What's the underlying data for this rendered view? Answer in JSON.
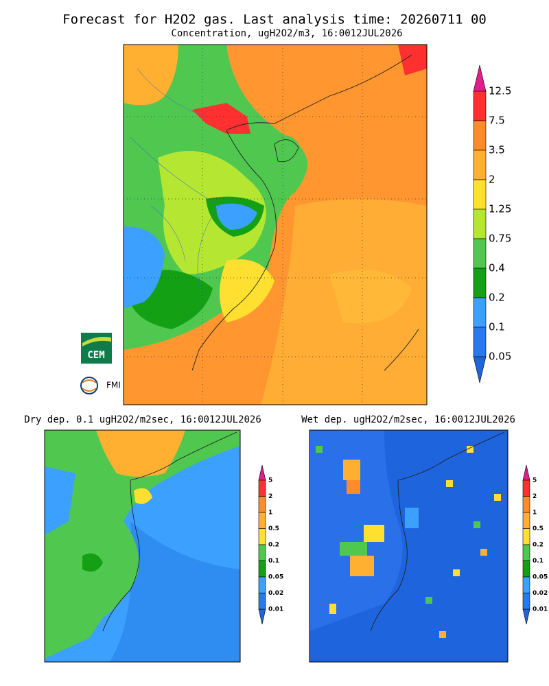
{
  "header": {
    "title": "Forecast for H2O2 gas. Last analysis time: 20260711 00",
    "subtitle": "Concentration, ugH2O2/m3, 16:0012JUL2026"
  },
  "main_legend": {
    "labels": [
      "12.5",
      "7.5",
      "3.5",
      "2",
      "1.25",
      "0.75",
      "0.4",
      "0.2",
      "0.1",
      "0.05"
    ]
  },
  "panels": [
    {
      "title": "Dry dep. 0.1 ugH2O2/m2sec, 16:0012JUL2026",
      "legend": [
        "5",
        "2",
        "1",
        "0.5",
        "0.2",
        "0.1",
        "0.05",
        "0.02",
        "0.01"
      ]
    },
    {
      "title": "Wet dep. ugH2O2/m2sec, 16:0012JUL2026",
      "legend": [
        "5",
        "2",
        "1",
        "0.5",
        "0.2",
        "0.1",
        "0.05",
        "0.02",
        "0.01"
      ]
    }
  ],
  "logos": {
    "cem": "CEM",
    "fmi": "FMI"
  }
}
